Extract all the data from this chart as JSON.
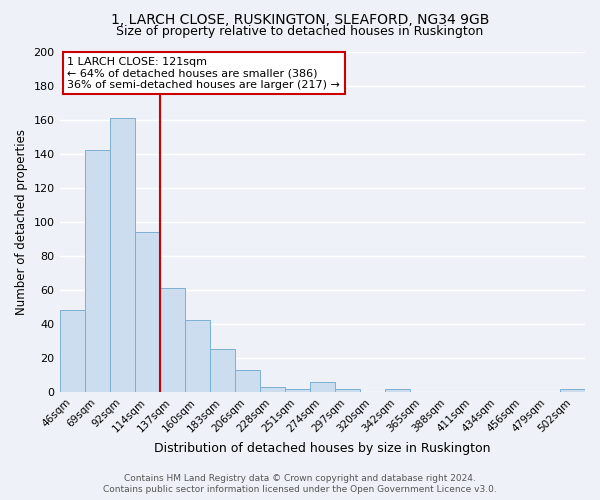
{
  "title1": "1, LARCH CLOSE, RUSKINGTON, SLEAFORD, NG34 9GB",
  "title2": "Size of property relative to detached houses in Ruskington",
  "xlabel": "Distribution of detached houses by size in Ruskington",
  "ylabel": "Number of detached properties",
  "bar_labels": [
    "46sqm",
    "69sqm",
    "92sqm",
    "114sqm",
    "137sqm",
    "160sqm",
    "183sqm",
    "206sqm",
    "228sqm",
    "251sqm",
    "274sqm",
    "297sqm",
    "320sqm",
    "342sqm",
    "365sqm",
    "388sqm",
    "411sqm",
    "434sqm",
    "456sqm",
    "479sqm",
    "502sqm"
  ],
  "bar_values": [
    48,
    142,
    161,
    94,
    61,
    42,
    25,
    13,
    3,
    2,
    6,
    2,
    0,
    2,
    0,
    0,
    0,
    0,
    0,
    0,
    2
  ],
  "bar_color": "#cdddf0",
  "bar_edge_color": "#7bafd4",
  "vline_x": 3.5,
  "vline_color": "#cc0000",
  "annotation_title": "1 LARCH CLOSE: 121sqm",
  "annotation_line1": "← 64% of detached houses are smaller (386)",
  "annotation_line2": "36% of semi-detached houses are larger (217) →",
  "annotation_box_color": "#ffffff",
  "annotation_box_edge": "#cc0000",
  "ylim": [
    0,
    200
  ],
  "yticks": [
    0,
    20,
    40,
    60,
    80,
    100,
    120,
    140,
    160,
    180,
    200
  ],
  "footer1": "Contains HM Land Registry data © Crown copyright and database right 2024.",
  "footer2": "Contains public sector information licensed under the Open Government Licence v3.0.",
  "bg_color": "#eef2f8"
}
